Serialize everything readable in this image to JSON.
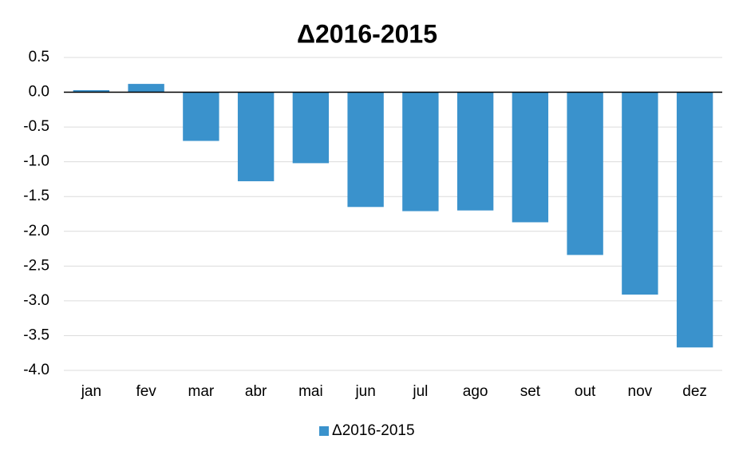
{
  "chart_data": {
    "type": "bar",
    "title": "Δ2016-2015",
    "categories": [
      "jan",
      "fev",
      "mar",
      "abr",
      "mai",
      "jun",
      "jul",
      "ago",
      "set",
      "out",
      "nov",
      "dez"
    ],
    "series": [
      {
        "name": "Δ2016-2015",
        "color": "#3a92cc",
        "values": [
          0.03,
          0.12,
          -0.7,
          -1.28,
          -1.02,
          -1.65,
          -1.71,
          -1.7,
          -1.87,
          -2.34,
          -2.91,
          -3.67
        ]
      }
    ],
    "ylim": [
      -4,
      0.5
    ],
    "yticks": [
      0.5,
      {
        "value": 0,
        "label": "0.0"
      },
      -0.5,
      {
        "value": -1,
        "label": "-1.0"
      },
      -1.5,
      {
        "value": -2,
        "label": "-2.0"
      },
      -2.5,
      {
        "value": -3,
        "label": "-3.0"
      },
      -3.5,
      {
        "value": -4,
        "label": "-4.0"
      }
    ],
    "grid": true,
    "legend": "bottom"
  }
}
